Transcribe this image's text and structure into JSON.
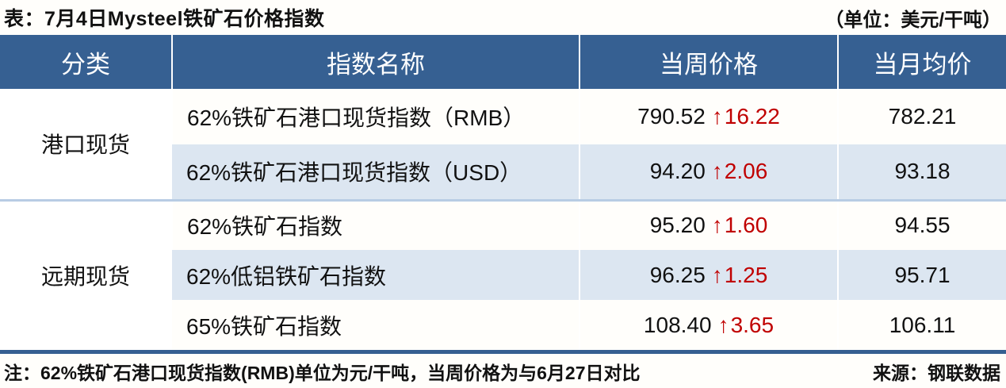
{
  "title": "表：7月4日Mysteel铁矿石价格指数",
  "unit_label": "（单位：美元/干吨）",
  "icons": {
    "up_arrow": "↑"
  },
  "colors": {
    "header_bg": "#366092",
    "alt_row_bg": "#DCE6F1",
    "up_red": "#C00000",
    "bottom_rule_blue": "#365F91",
    "group_separator": "#B8CCE4"
  },
  "table": {
    "headers": [
      "分类",
      "指数名称",
      "当周价格",
      "当月均价"
    ],
    "groups": [
      {
        "category": "港口现货",
        "rows": [
          {
            "name": "62%铁矿石港口现货指数（RMB）",
            "week_price": "790.52",
            "change": "16.22",
            "month_avg": "782.21"
          },
          {
            "name": "62%铁矿石港口现货指数（USD）",
            "week_price": "94.20",
            "change": "2.06",
            "month_avg": "93.18"
          }
        ]
      },
      {
        "category": "远期现货",
        "rows": [
          {
            "name": "62%铁矿石指数",
            "week_price": "95.20",
            "change": "1.60",
            "month_avg": "94.55"
          },
          {
            "name": "62%低铝铁矿石指数",
            "week_price": "96.25",
            "change": "1.25",
            "month_avg": "95.71"
          },
          {
            "name": "65%铁矿石指数",
            "week_price": "108.40",
            "change": "3.65",
            "month_avg": "106.11"
          }
        ]
      }
    ]
  },
  "footer": {
    "note": "注：62%铁矿石港口现货指数(RMB)单位为元/干吨，当周价格为与6月27日对比",
    "source": "来源：钢联数据"
  }
}
